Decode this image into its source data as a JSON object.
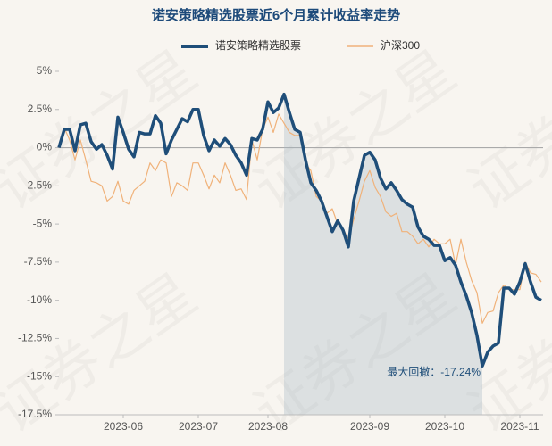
{
  "chart_data": {
    "type": "line",
    "title": "诺安策略精选股票近6个月累计收益率走势",
    "watermark": "证券之星",
    "annotation": "最大回撤：-17.24%",
    "categories": [
      null,
      null,
      null,
      null,
      null,
      null,
      null,
      null,
      null,
      null,
      null,
      null,
      "2023-06",
      null,
      null,
      null,
      null,
      null,
      null,
      null,
      null,
      null,
      null,
      null,
      null,
      null,
      "2023-07",
      null,
      null,
      null,
      null,
      null,
      null,
      null,
      null,
      null,
      null,
      null,
      null,
      "2023-08",
      null,
      null,
      null,
      null,
      null,
      null,
      null,
      null,
      null,
      null,
      null,
      null,
      null,
      null,
      null,
      null,
      null,
      null,
      "2023-09",
      null,
      null,
      null,
      null,
      null,
      null,
      null,
      null,
      null,
      null,
      null,
      null,
      null,
      "2023-10",
      null,
      null,
      null,
      null,
      null,
      null,
      null,
      null,
      null,
      null,
      null,
      null,
      null,
      "2023-11",
      null,
      null,
      null,
      null
    ],
    "series": [
      {
        "name": "诺安策略精选股票",
        "color": "#1f4e79",
        "values": [
          0,
          1.2,
          1.2,
          -0.2,
          1.5,
          1.6,
          0.4,
          -0.1,
          0.2,
          -0.5,
          -1.4,
          2.0,
          1.0,
          -0.1,
          -0.6,
          1.0,
          0.9,
          0.9,
          2.1,
          1.6,
          -0.4,
          0.5,
          1.2,
          1.9,
          1.7,
          2.5,
          2.5,
          0.8,
          -0.2,
          0.5,
          0.1,
          0.6,
          0.2,
          -0.5,
          -1.0,
          -1.8,
          0.6,
          0.5,
          1.2,
          3.0,
          2.3,
          2.6,
          3.5,
          2.3,
          1.2,
          1.0,
          -0.8,
          -2.3,
          -2.8,
          -3.5,
          -4.5,
          -5.5,
          -4.8,
          -5.4,
          -6.5,
          -3.5,
          -2.0,
          -0.5,
          -0.3,
          -0.8,
          -2.0,
          -2.7,
          -2.3,
          -2.8,
          -3.4,
          -3.7,
          -3.9,
          -5.2,
          -5.8,
          -6.0,
          -6.4,
          -6.4,
          -7.4,
          -7.2,
          -7.7,
          -8.8,
          -9.7,
          -10.8,
          -12.3,
          -14.3,
          -13.4,
          -13.0,
          -12.8,
          -9.2,
          -9.2,
          -9.6,
          -8.8,
          -7.6,
          -8.8,
          -9.8,
          -10.0
        ]
      },
      {
        "name": "沪深300",
        "color": "#f0b27a",
        "values": [
          0,
          1.3,
          0.5,
          -0.8,
          0.5,
          -0.8,
          -2.2,
          -2.3,
          -2.5,
          -3.5,
          -3.2,
          -2.2,
          -3.5,
          -3.7,
          -2.8,
          -2.5,
          -2.2,
          -1.0,
          -1.5,
          -0.8,
          -1.0,
          -3.2,
          -2.3,
          -2.5,
          -2.8,
          -1.0,
          -1.0,
          -1.8,
          -2.7,
          -1.8,
          -2.3,
          -1.0,
          -1.8,
          -2.8,
          -2.7,
          -3.4,
          0.5,
          -0.8,
          1.2,
          2.0,
          1.0,
          2.2,
          1.6,
          1.0,
          0.8,
          0.8,
          -1.0,
          -1.5,
          -3.2,
          -3.5,
          -4.3,
          -4.0,
          -5.0,
          -5.3,
          -6.0,
          -4.7,
          -3.5,
          -2.2,
          -1.5,
          -2.6,
          -3.2,
          -4.2,
          -4.5,
          -4.3,
          -5.5,
          -5.5,
          -5.8,
          -6.3,
          -6.0,
          -6.5,
          -6.0,
          -6.3,
          -6.3,
          -6.0,
          -7.7,
          -6.0,
          -7.5,
          -8.7,
          -9.5,
          -11.5,
          -10.8,
          -10.7,
          -9.5,
          -9.0,
          -9.3,
          -9.3,
          -9.3,
          -7.5,
          -8.2,
          -8.3,
          -8.8
        ]
      }
    ],
    "ylim": [
      -17.5,
      5
    ],
    "yticks": [
      {
        "value": 5,
        "label": "5%"
      },
      {
        "value": 2.5,
        "label": "2.5%"
      },
      {
        "value": 0,
        "label": "0%"
      },
      {
        "value": -2.5,
        "label": "-2.5%"
      },
      {
        "value": -5,
        "label": "-5%"
      },
      {
        "value": -7.5,
        "label": "-7.5%"
      },
      {
        "value": -10,
        "label": "-10%"
      },
      {
        "value": -12.5,
        "label": "-12.5%"
      },
      {
        "value": -15,
        "label": "-15%"
      },
      {
        "value": -17.5,
        "label": "-17.5%"
      }
    ]
  }
}
